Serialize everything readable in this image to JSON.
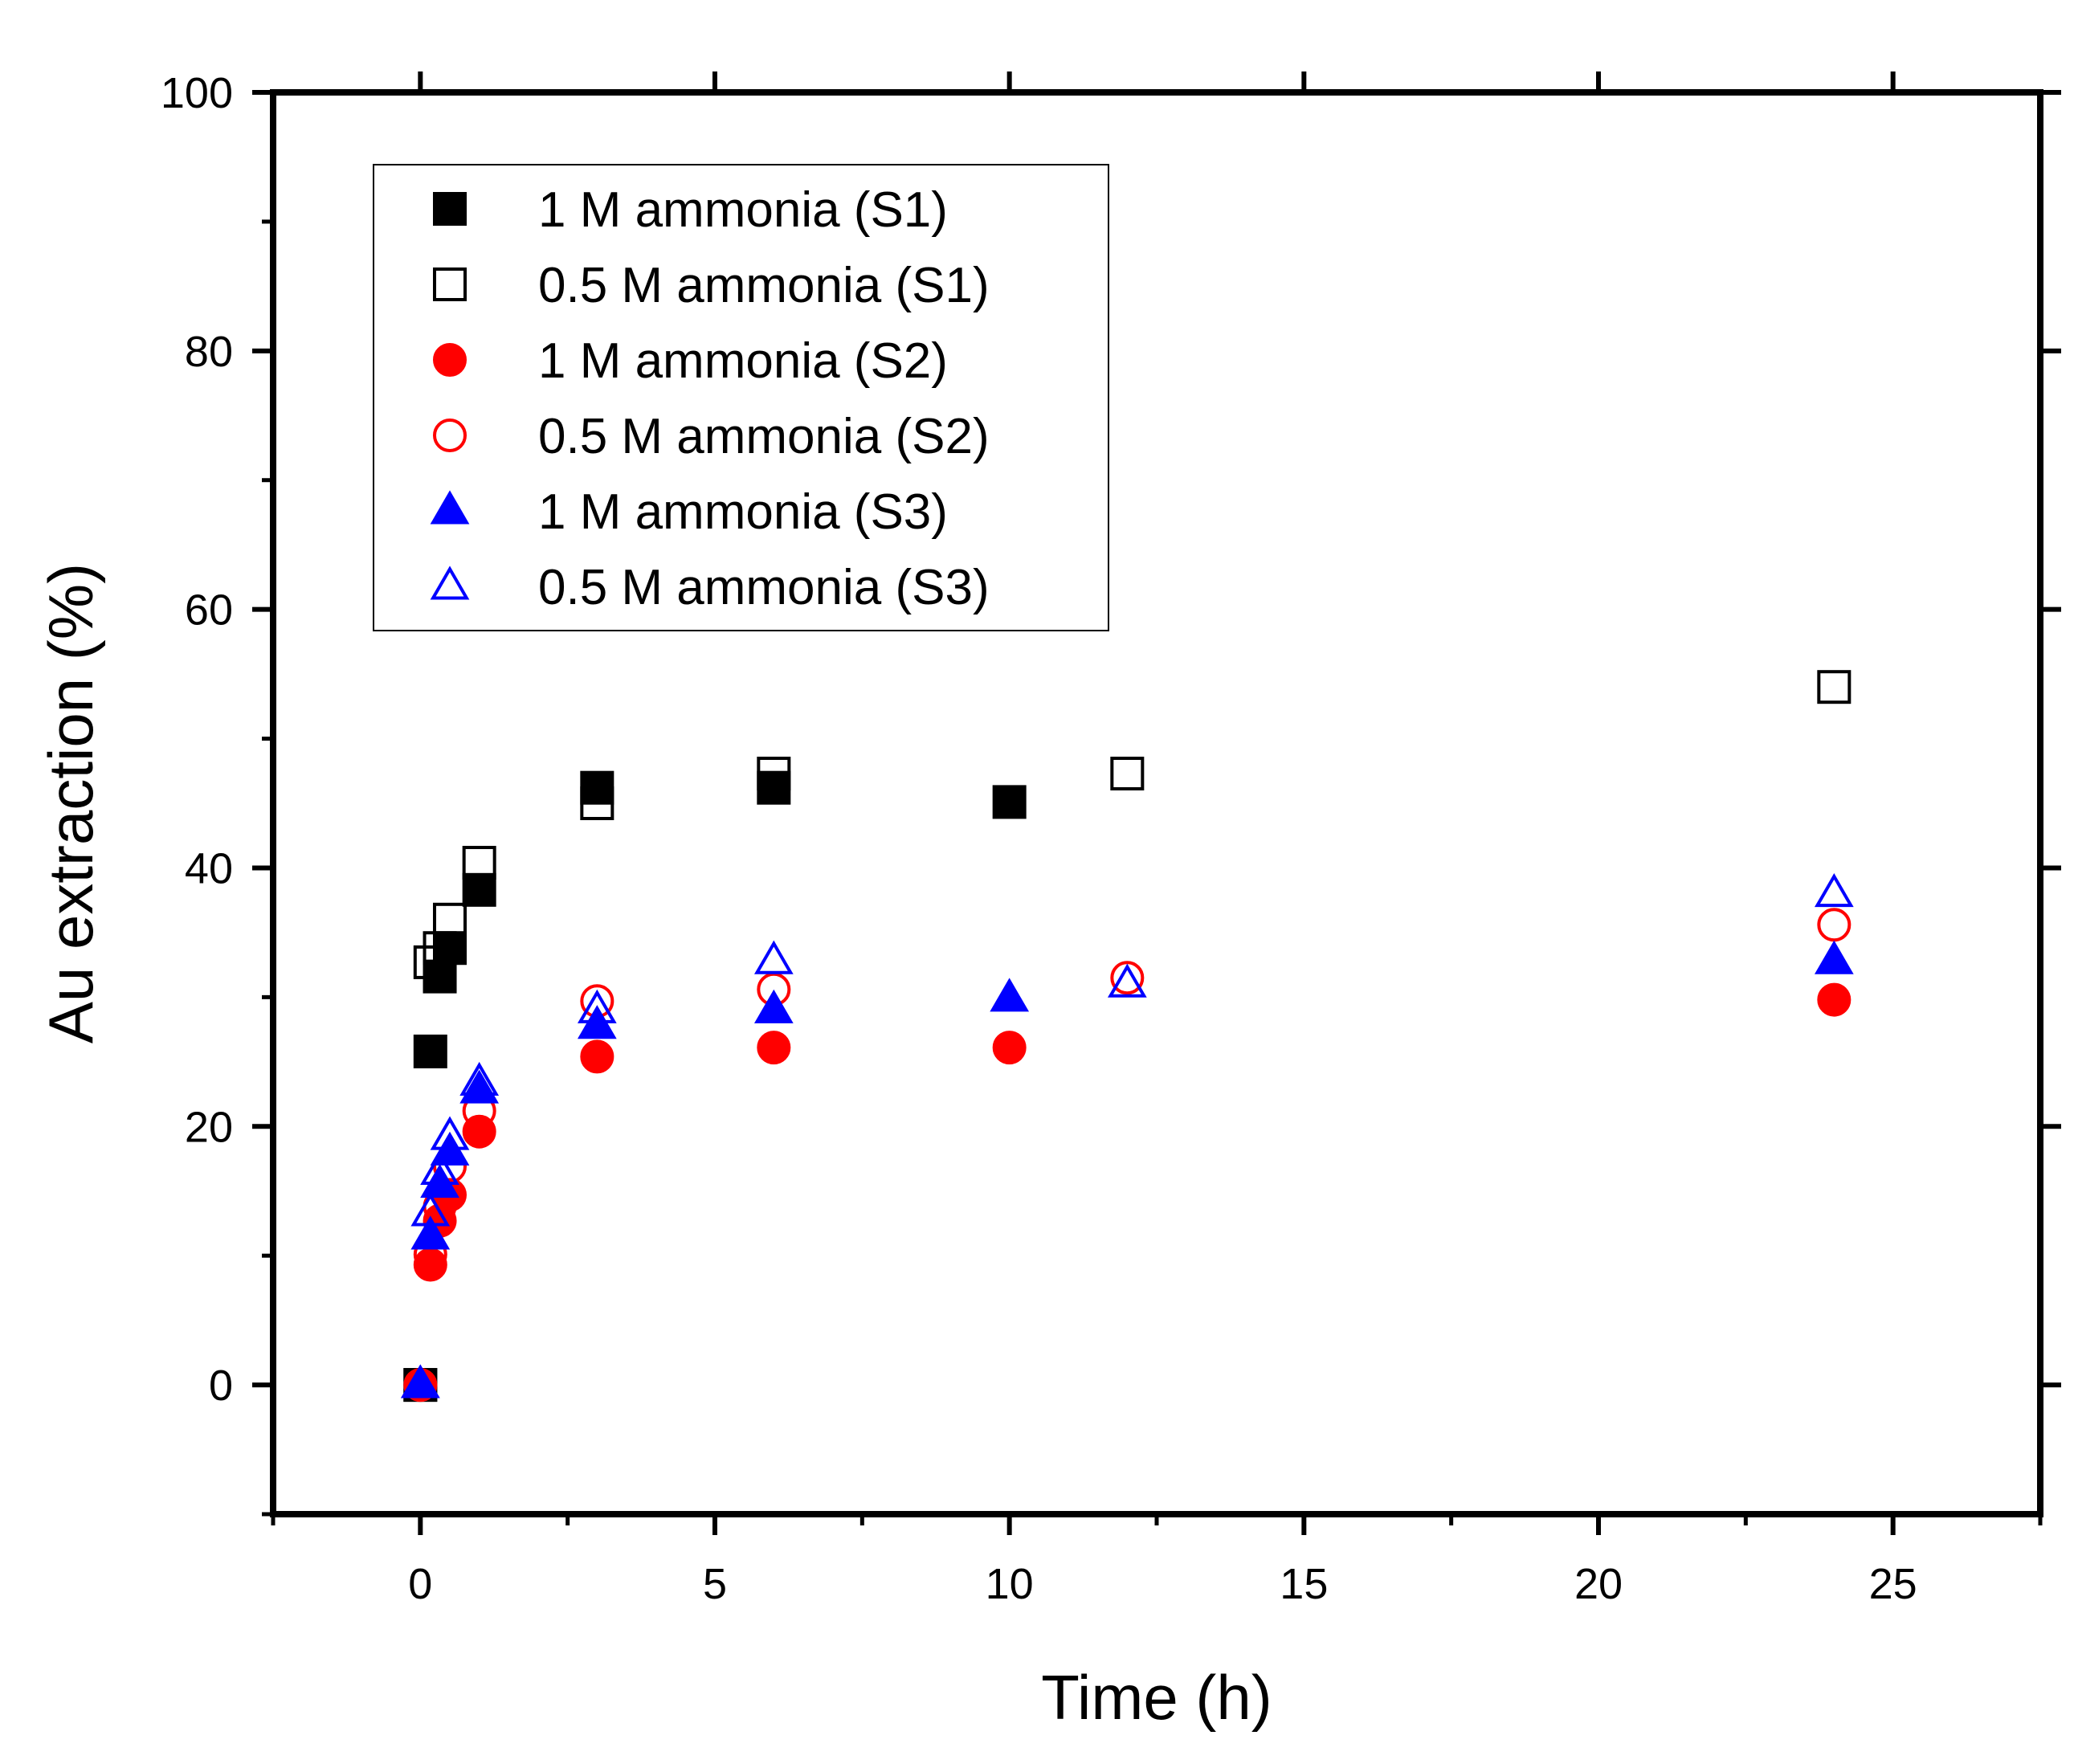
{
  "chart_data": {
    "type": "scatter",
    "title": "",
    "xlabel": "Time (h)",
    "ylabel": "Au extraction (%)",
    "xlim": [
      -2.5,
      27.5
    ],
    "ylim": [
      -10,
      100
    ],
    "xticks": [
      0,
      5,
      10,
      15,
      20,
      25
    ],
    "yticks": [
      0,
      20,
      40,
      60,
      80,
      100
    ],
    "grid": false,
    "legend_position": "top-left",
    "series": [
      {
        "name": "1 M ammonia (S1)",
        "marker": "square",
        "filled": true,
        "color": "#000000",
        "points": [
          [
            0,
            0
          ],
          [
            0.17,
            25.8
          ],
          [
            0.33,
            31.6
          ],
          [
            0.5,
            33.8
          ],
          [
            1,
            38.3
          ],
          [
            3,
            46.2
          ],
          [
            6,
            46.2
          ],
          [
            10,
            45.1
          ]
        ]
      },
      {
        "name": "0.5 M ammonia (S1)",
        "marker": "square",
        "filled": false,
        "color": "#000000",
        "points": [
          [
            0,
            0
          ],
          [
            0.17,
            32.7
          ],
          [
            0.33,
            33.8
          ],
          [
            0.5,
            36.0
          ],
          [
            1,
            40.4
          ],
          [
            3,
            45.0
          ],
          [
            6,
            47.3
          ],
          [
            12,
            47.3
          ],
          [
            24,
            54.0
          ]
        ]
      },
      {
        "name": "1 M ammonia (S2)",
        "marker": "circle",
        "filled": true,
        "color": "#ff0000",
        "points": [
          [
            0,
            0
          ],
          [
            0.17,
            9.3
          ],
          [
            0.33,
            12.7
          ],
          [
            0.5,
            14.7
          ],
          [
            1,
            19.6
          ],
          [
            3,
            25.4
          ],
          [
            6,
            26.1
          ],
          [
            10,
            26.1
          ],
          [
            24,
            29.8
          ]
        ]
      },
      {
        "name": "0.5 M ammonia (S2)",
        "marker": "circle",
        "filled": false,
        "color": "#ff0000",
        "points": [
          [
            0,
            0
          ],
          [
            0.17,
            10.1
          ],
          [
            0.33,
            13.8
          ],
          [
            0.5,
            16.9
          ],
          [
            1,
            21.2
          ],
          [
            3,
            29.7
          ],
          [
            6,
            30.6
          ],
          [
            12,
            31.5
          ],
          [
            24,
            35.6
          ]
        ]
      },
      {
        "name": "1 M ammonia (S3)",
        "marker": "triangle",
        "filled": true,
        "color": "#0000ff",
        "points": [
          [
            0,
            0
          ],
          [
            0.17,
            11.5
          ],
          [
            0.33,
            15.5
          ],
          [
            0.5,
            18.0
          ],
          [
            1,
            22.8
          ],
          [
            3,
            27.8
          ],
          [
            6,
            29.0
          ],
          [
            10,
            29.9
          ],
          [
            24,
            32.8
          ]
        ]
      },
      {
        "name": "0.5 M ammonia (S3)",
        "marker": "triangle",
        "filled": false,
        "color": "#0000ff",
        "points": [
          [
            0,
            0
          ],
          [
            0.17,
            13.3
          ],
          [
            0.33,
            16.5
          ],
          [
            0.5,
            19.2
          ],
          [
            1,
            23.4
          ],
          [
            3,
            29.0
          ],
          [
            6,
            32.8
          ],
          [
            12,
            31.0
          ],
          [
            24,
            38.0
          ]
        ]
      }
    ]
  }
}
